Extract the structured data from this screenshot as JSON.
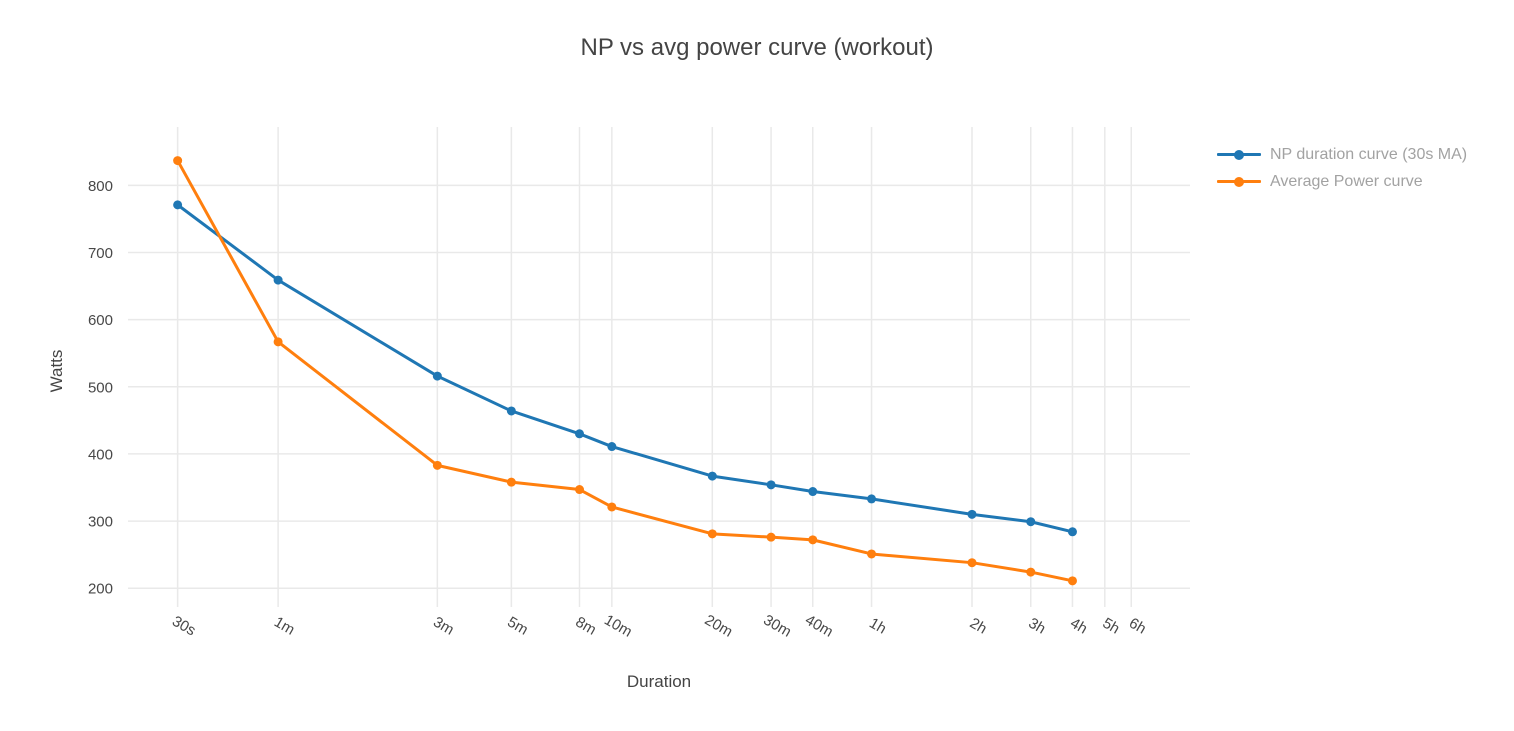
{
  "title": "NP vs avg power curve (workout)",
  "colors": {
    "background": "#ffffff",
    "title_text": "#444444",
    "tick_text": "#484848",
    "axis_title_text": "#444444",
    "legend_text": "#a2a2a2",
    "gridline": "#e9e9e9",
    "series_blue": "#1f77b4",
    "series_orange": "#ff7f0e"
  },
  "chart_data": {
    "type": "line",
    "title": "NP vs avg power curve (workout)",
    "xlabel": "Duration",
    "ylabel": "Watts",
    "xscale": "log",
    "grid": true,
    "legend_position": "right-top",
    "x_tick_labels": [
      "30s",
      "1m",
      "3m",
      "5m",
      "8m",
      "10m",
      "20m",
      "30m",
      "40m",
      "1h",
      "2h",
      "3h",
      "4h",
      "5h",
      "6h"
    ],
    "x_tick_seconds": [
      30,
      60,
      180,
      300,
      480,
      600,
      1200,
      1800,
      2400,
      3600,
      7200,
      10800,
      14400,
      18000,
      21600
    ],
    "y_ticks": [
      200,
      300,
      400,
      500,
      600,
      700,
      800
    ],
    "xlim_seconds": [
      21.3,
      32400
    ],
    "ylim": [
      172,
      887
    ],
    "categories": [
      "30s",
      "1m",
      "3m",
      "5m",
      "8m",
      "10m",
      "20m",
      "30m",
      "40m",
      "1h",
      "2h",
      "3h",
      "4h"
    ],
    "x_seconds": [
      30,
      60,
      180,
      300,
      480,
      600,
      1200,
      1800,
      2400,
      3600,
      7200,
      10800,
      14400
    ],
    "series": [
      {
        "name": "NP duration curve (30s MA)",
        "color": "#1f77b4",
        "values": [
          771,
          659,
          516,
          464,
          430,
          411,
          367,
          354,
          344,
          333,
          310,
          299,
          284
        ]
      },
      {
        "name": "Average Power curve",
        "color": "#ff7f0e",
        "values": [
          837,
          567,
          383,
          358,
          347,
          321,
          281,
          276,
          272,
          251,
          238,
          224,
          211
        ]
      }
    ]
  }
}
